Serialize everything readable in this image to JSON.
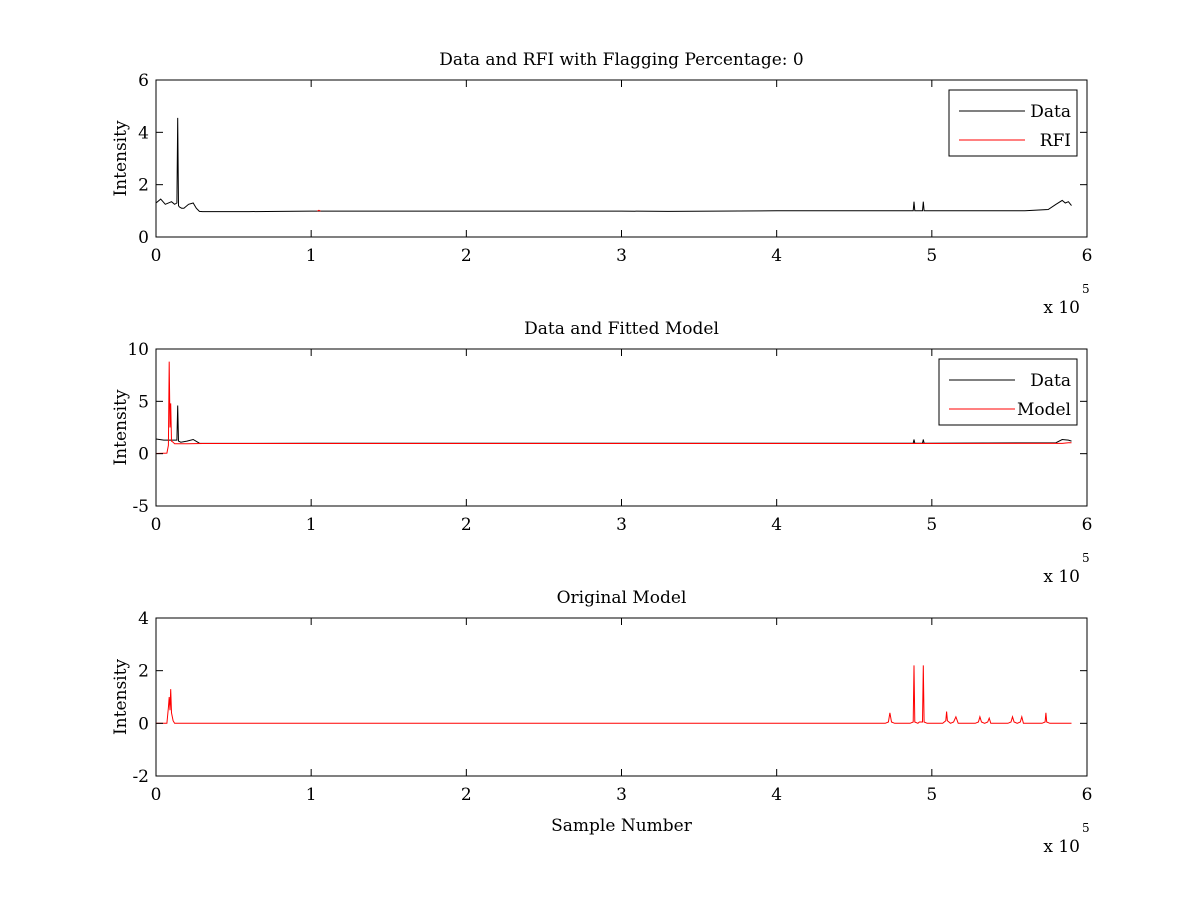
{
  "chart_data": [
    {
      "type": "line",
      "title": "Data and RFI with Flagging Percentage: 0",
      "xlabel": "",
      "ylabel": "Intensity",
      "xlim": [
        0,
        600000
      ],
      "ylim": [
        0,
        6
      ],
      "xticks": [
        0,
        1,
        2,
        3,
        4,
        5,
        6
      ],
      "yticks": [
        0,
        2,
        4,
        6
      ],
      "x_multiplier": "x 10",
      "x_multiplier_exp": "5",
      "grid": false,
      "legend": "top-right",
      "series": [
        {
          "name": "Data",
          "color": "#000000",
          "x": [
            0,
            3000,
            6000,
            10000,
            12000,
            13500,
            14000,
            14500,
            15000,
            16500,
            18000,
            21000,
            24000,
            26000,
            28000,
            30000,
            40000,
            60000,
            80000,
            100000,
            150000,
            200000,
            250000,
            300000,
            330000,
            400000,
            450000,
            480000,
            488000,
            488500,
            489000,
            494000,
            494500,
            495000,
            520000,
            560000,
            575000,
            580000,
            584000,
            586000,
            588000,
            590000
          ],
          "y": [
            1.3,
            1.45,
            1.25,
            1.35,
            1.25,
            1.3,
            4.55,
            1.2,
            1.15,
            1.1,
            1.1,
            1.25,
            1.3,
            1.1,
            0.98,
            0.97,
            0.97,
            0.97,
            0.98,
            0.99,
            0.99,
            0.99,
            0.99,
            0.99,
            0.98,
            1.0,
            1.0,
            1.0,
            1.0,
            1.35,
            1.0,
            1.0,
            1.35,
            1.0,
            1.0,
            1.0,
            1.05,
            1.25,
            1.4,
            1.3,
            1.35,
            1.2
          ]
        },
        {
          "name": "RFI",
          "color": "#ff0000",
          "x": [
            104000,
            105000,
            106000
          ],
          "y": [
            0.99,
            1.02,
            0.99
          ]
        }
      ]
    },
    {
      "type": "line",
      "title": "Data and Fitted Model",
      "xlabel": "",
      "ylabel": "Intensity",
      "xlim": [
        0,
        600000
      ],
      "ylim": [
        -5,
        10
      ],
      "xticks": [
        0,
        1,
        2,
        3,
        4,
        5,
        6
      ],
      "yticks": [
        -5,
        0,
        5,
        10
      ],
      "x_multiplier": "x 10",
      "x_multiplier_exp": "5",
      "grid": false,
      "legend": "top-right",
      "series": [
        {
          "name": "Data",
          "color": "#000000",
          "x": [
            0,
            5000,
            10000,
            13500,
            14000,
            14500,
            16000,
            20000,
            24000,
            28000,
            30000,
            100000,
            200000,
            300000,
            400000,
            488000,
            488500,
            489000,
            494000,
            494500,
            495000,
            580000,
            584000,
            588000,
            590000
          ],
          "y": [
            1.4,
            1.3,
            1.3,
            1.3,
            4.6,
            1.2,
            1.1,
            1.2,
            1.35,
            1.0,
            0.98,
            0.99,
            0.99,
            0.99,
            1.0,
            1.0,
            1.35,
            1.0,
            1.0,
            1.35,
            1.0,
            1.05,
            1.35,
            1.3,
            1.2
          ]
        },
        {
          "name": "Model",
          "color": "#ff0000",
          "x": [
            0,
            7000,
            8000,
            8500,
            9000,
            9500,
            10000,
            11000,
            12000,
            15000,
            20000,
            30000,
            100000,
            200000,
            300000,
            400000,
            500000,
            584000,
            588000,
            590000
          ],
          "y": [
            0.02,
            0.05,
            0.8,
            8.8,
            2.5,
            4.8,
            1.2,
            1.1,
            0.95,
            0.95,
            0.95,
            0.97,
            0.97,
            0.97,
            0.97,
            0.97,
            0.97,
            0.98,
            1.05,
            1.05
          ]
        }
      ]
    },
    {
      "type": "line",
      "title": "Original Model",
      "xlabel": "Sample Number",
      "ylabel": "Intensity",
      "xlim": [
        0,
        600000
      ],
      "ylim": [
        -2,
        4
      ],
      "xticks": [
        0,
        1,
        2,
        3,
        4,
        5,
        6
      ],
      "yticks": [
        -2,
        0,
        2,
        4
      ],
      "x_multiplier": "x 10",
      "x_multiplier_exp": "5",
      "grid": false,
      "legend": "none",
      "series": [
        {
          "color": "#ff0000",
          "x": [
            0,
            7000,
            8000,
            8500,
            9000,
            9500,
            10000,
            11000,
            12000,
            470000,
            472000,
            473000,
            474000,
            476000,
            486000,
            488000,
            488500,
            489000,
            491000,
            492000,
            494000,
            494500,
            495000,
            497000,
            507000,
            509000,
            509500,
            510000,
            512000,
            514000,
            515500,
            517000,
            528000,
            530000,
            531000,
            532000,
            534000,
            536000,
            537000,
            538000,
            549000,
            551000,
            552000,
            553000,
            555000,
            557000,
            558000,
            559000,
            571000,
            573000,
            573500,
            574000,
            576000,
            590000
          ],
          "y": [
            0,
            0,
            0.6,
            1.0,
            0.5,
            1.3,
            0.4,
            0.1,
            0,
            0,
            0.05,
            0.4,
            0.05,
            0,
            0,
            0.05,
            2.2,
            0.05,
            0,
            0.05,
            0.05,
            2.2,
            0.05,
            0,
            0,
            0.1,
            0.45,
            0.1,
            0,
            0.05,
            0.25,
            0,
            0,
            0.05,
            0.25,
            0.05,
            0,
            0.05,
            0.2,
            0,
            0,
            0.05,
            0.25,
            0.05,
            0,
            0.05,
            0.25,
            0,
            0,
            0.05,
            0.4,
            0.05,
            0,
            0
          ]
        }
      ]
    }
  ]
}
